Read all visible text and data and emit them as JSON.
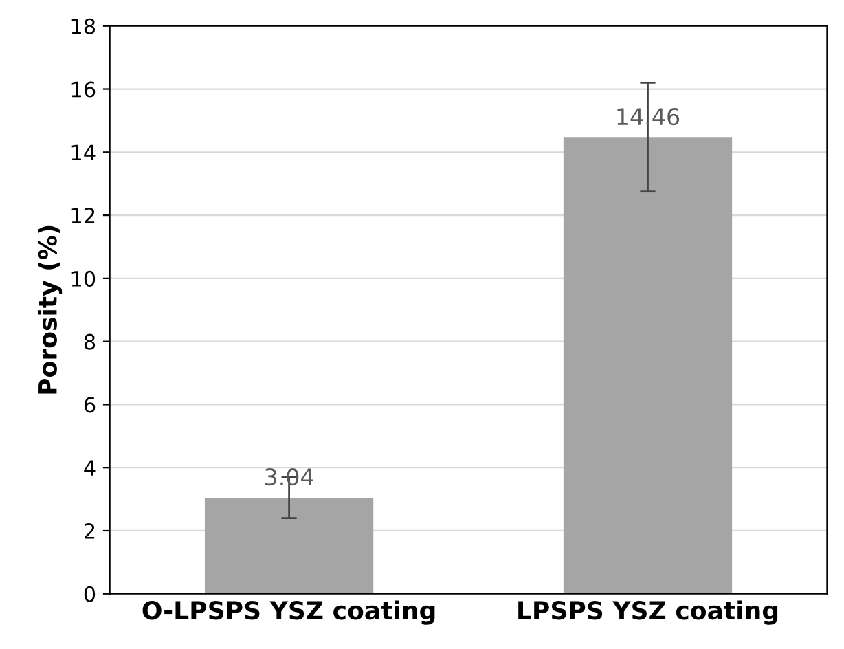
{
  "chart_data": {
    "type": "bar",
    "ylabel": "Porosity (%)",
    "categories": [
      "O-LPSPS YSZ coating",
      "LPSPS YSZ coating"
    ],
    "values": [
      3.04,
      14.46
    ],
    "color": "#a5a5a5",
    "errors": [
      [
        2.4,
        3.7
      ],
      [
        12.75,
        16.2
      ]
    ],
    "data_labels": true,
    "ylim": [
      0,
      18
    ],
    "yticks": [
      0,
      2,
      4,
      6,
      8,
      10,
      12,
      14,
      16,
      18
    ],
    "grid": "y",
    "legend": false
  }
}
